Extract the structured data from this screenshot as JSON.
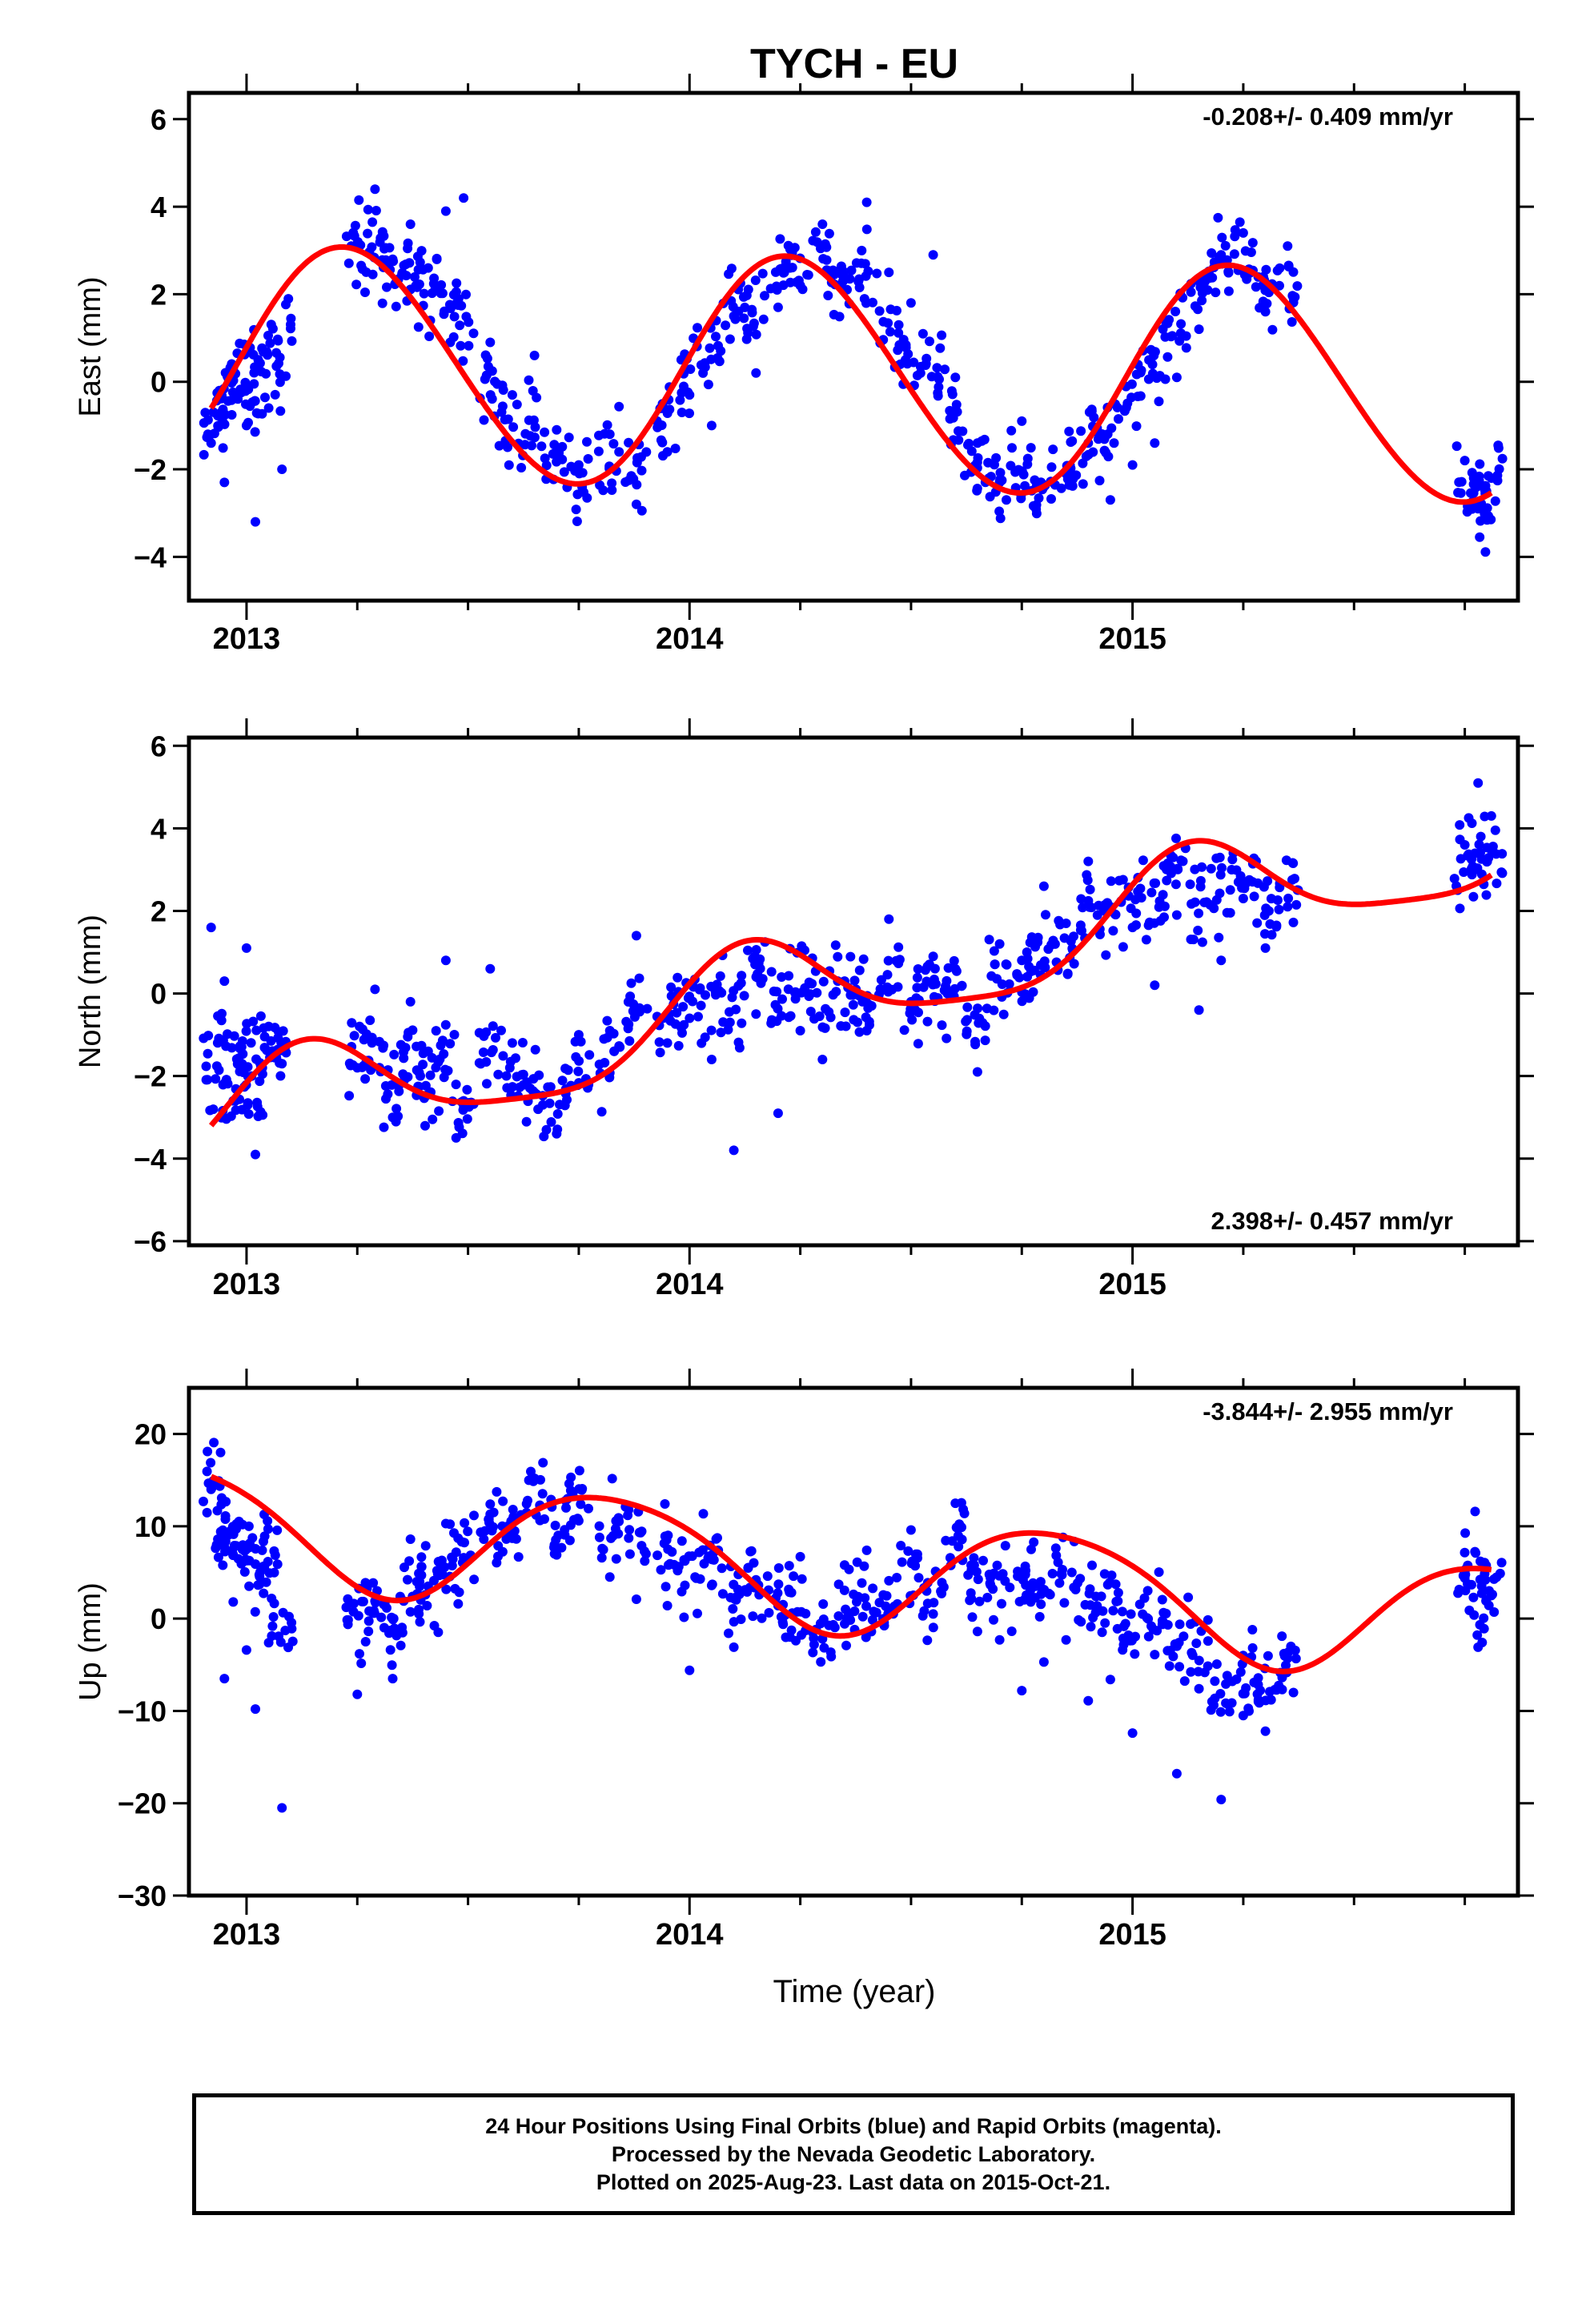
{
  "figure": {
    "title": "TYCH - EU",
    "xlabel": "Time (year)",
    "caption": [
      "24 Hour Positions Using Final Orbits (blue) and Rapid Orbits (magenta).",
      "Processed by the Nevada Geodetic Laboratory.",
      "Plotted on 2025-Aug-23. Last data on 2015-Oct-21."
    ],
    "colors": {
      "data": "#0000ff",
      "model": "#ff0000",
      "frame": "#000000"
    }
  },
  "chart_data": [
    {
      "type": "scatter",
      "ylabel": "East (mm)",
      "rate_label": "-0.208+/- 0.409 mm/yr",
      "rate_placement": "top-right",
      "xlim": [
        2012.87,
        2015.87
      ],
      "ylim": [
        -5,
        6.6
      ],
      "x_ticks": [
        2013,
        2014,
        2015
      ],
      "x_tick_labels": [
        "2013",
        "2014",
        "2015"
      ],
      "y_ticks": [
        -4,
        -2,
        0,
        2,
        4,
        6
      ],
      "y_tick_labels": [
        "−4",
        "−2",
        "0",
        "2",
        "4",
        "6"
      ],
      "model": {
        "name": "",
        "offset": 0.2,
        "rate": -0.208,
        "amp1": 2.64,
        "phase1": 0.125,
        "amp2": 0.12,
        "phase2": 0.05,
        "x_range": [
          2012.92,
          2015.81
        ]
      },
      "series": [
        {
          "name": "",
          "x": [
            2012.92,
            2012.95,
            2012.97,
            2013.0,
            2013.02,
            2013.05,
            2013.08,
            2013.25,
            2013.29,
            2013.33,
            2013.37,
            2013.41,
            2013.45,
            2013.49,
            2013.55,
            2013.6,
            2013.65,
            2013.7,
            2013.75,
            2013.82,
            2013.88,
            2013.95,
            2014.0,
            2014.05,
            2014.1,
            2014.15,
            2014.2,
            2014.25,
            2014.3,
            2014.35,
            2014.4,
            2014.45,
            2014.5,
            2014.55,
            2014.6,
            2014.65,
            2014.7,
            2014.75,
            2014.8,
            2014.85,
            2014.9,
            2014.95,
            2015.0,
            2015.05,
            2015.1,
            2015.15,
            2015.2,
            2015.25,
            2015.3,
            2015.35,
            2015.75,
            2015.78,
            2015.81
          ],
          "y": [
            -1.4,
            -2.3,
            0.3,
            -1.0,
            -3.2,
            -0.6,
            -2.0,
            3.1,
            4.4,
            2.8,
            3.6,
            2.6,
            3.9,
            4.2,
            0.9,
            -0.3,
            0.6,
            -1.1,
            -1.9,
            -1.2,
            -2.8,
            -1.6,
            -0.3,
            -1.0,
            1.5,
            0.2,
            1.7,
            2.2,
            3.6,
            2.4,
            4.1,
            2.5,
            1.8,
            2.9,
            0.1,
            -1.4,
            -2.3,
            -0.9,
            -2.4,
            -2.1,
            -1.4,
            -2.7,
            -1.9,
            -1.4,
            0.1,
            1.2,
            2.9,
            3.4,
            1.6,
            3.1,
            -1.8,
            -2.9,
            -2.2
          ]
        }
      ]
    },
    {
      "type": "scatter",
      "ylabel": "North (mm)",
      "rate_label": "2.398+/- 0.457 mm/yr",
      "rate_placement": "bottom-right",
      "xlim": [
        2012.87,
        2015.87
      ],
      "ylim": [
        -6.1,
        6.2
      ],
      "x_ticks": [
        2013,
        2014,
        2015
      ],
      "x_tick_labels": [
        "2013",
        "2014",
        "2015"
      ],
      "y_ticks": [
        -6,
        -4,
        -2,
        0,
        2,
        4,
        6
      ],
      "y_tick_labels": [
        "−6",
        "−4",
        "−2",
        "0",
        "2",
        "4",
        "6"
      ],
      "model": {
        "name": "",
        "offset": -0.15,
        "rate": 2.398,
        "amp1": 1.3,
        "phase1": 0.7,
        "amp2": 0.3,
        "phase2": 0.1,
        "x_range": [
          2012.92,
          2015.81
        ]
      },
      "series": [
        {
          "name": "",
          "x": [
            2012.92,
            2012.95,
            2012.97,
            2013.0,
            2013.02,
            2013.05,
            2013.08,
            2013.25,
            2013.29,
            2013.33,
            2013.37,
            2013.41,
            2013.45,
            2013.49,
            2013.55,
            2013.6,
            2013.65,
            2013.7,
            2013.75,
            2013.82,
            2013.88,
            2013.95,
            2014.0,
            2014.05,
            2014.1,
            2014.15,
            2014.2,
            2014.25,
            2014.3,
            2014.35,
            2014.4,
            2014.45,
            2014.5,
            2014.55,
            2014.6,
            2014.65,
            2014.7,
            2014.75,
            2014.8,
            2014.85,
            2014.9,
            2014.95,
            2015.0,
            2015.05,
            2015.1,
            2015.15,
            2015.2,
            2015.25,
            2015.3,
            2015.35,
            2015.75,
            2015.78,
            2015.81
          ],
          "y": [
            1.6,
            0.3,
            -2.6,
            1.1,
            -3.9,
            -0.8,
            -1.7,
            -1.8,
            0.1,
            -3.0,
            -0.2,
            -1.4,
            0.8,
            -2.6,
            0.6,
            -1.2,
            -2.4,
            -3.4,
            -1.0,
            -0.9,
            1.4,
            -1.2,
            -0.6,
            -1.6,
            -3.8,
            -0.5,
            -2.9,
            -0.9,
            -1.6,
            0.3,
            -0.9,
            1.8,
            -0.2,
            0.9,
            0.6,
            -1.9,
            1.2,
            0.8,
            2.6,
            1.7,
            3.2,
            2.1,
            1.6,
            0.2,
            1.9,
            -0.4,
            0.8,
            2.3,
            1.1,
            2.1,
            3.6,
            5.1,
            4.3
          ]
        }
      ]
    },
    {
      "type": "scatter",
      "ylabel": "Up (mm)",
      "rate_label": "-3.844+/- 2.955 mm/yr",
      "rate_placement": "top-right",
      "xlim": [
        2012.87,
        2015.87
      ],
      "ylim": [
        -30,
        25
      ],
      "x_ticks": [
        2013,
        2014,
        2015
      ],
      "x_tick_labels": [
        "2013",
        "2014",
        "2015"
      ],
      "y_ticks": [
        -30,
        -20,
        -10,
        0,
        10,
        20
      ],
      "y_tick_labels": [
        "−30",
        "−20",
        "−10",
        "0",
        "10",
        "20"
      ],
      "model": {
        "name": "",
        "offset": 5.8,
        "rate": -3.844,
        "amp1": 6.4,
        "phase1": 2.7,
        "amp2": 0.8,
        "phase2": 0.3,
        "x_range": [
          2012.92,
          2015.81
        ]
      },
      "series": [
        {
          "name": "",
          "x": [
            2012.92,
            2012.95,
            2012.97,
            2013.0,
            2013.02,
            2013.05,
            2013.08,
            2013.25,
            2013.29,
            2013.33,
            2013.37,
            2013.41,
            2013.45,
            2013.49,
            2013.55,
            2013.6,
            2013.65,
            2013.7,
            2013.75,
            2013.82,
            2013.88,
            2013.95,
            2014.0,
            2014.05,
            2014.1,
            2014.15,
            2014.2,
            2014.25,
            2014.3,
            2014.35,
            2014.4,
            2014.45,
            2014.5,
            2014.55,
            2014.6,
            2014.65,
            2014.7,
            2014.75,
            2014.8,
            2014.85,
            2014.9,
            2014.95,
            2015.0,
            2015.05,
            2015.1,
            2015.15,
            2015.2,
            2015.25,
            2015.3,
            2015.35,
            2015.75,
            2015.78,
            2015.81
          ],
          "y": [
            14.0,
            -6.5,
            1.8,
            -3.4,
            -9.8,
            -2.6,
            -20.5,
            -8.2,
            1.9,
            -6.5,
            8.6,
            3.5,
            10.3,
            6.6,
            12.4,
            8.7,
            15.2,
            6.9,
            10.6,
            4.5,
            2.1,
            1.4,
            -5.6,
            3.6,
            -3.1,
            4.2,
            1.4,
            6.7,
            -2.2,
            5.8,
            7.4,
            4.1,
            9.6,
            0.5,
            12.5,
            -1.4,
            -2.3,
            -7.8,
            -4.7,
            -2.3,
            -8.9,
            -6.6,
            -12.4,
            -3.9,
            -16.8,
            -7.6,
            -19.6,
            -10.5,
            -12.2,
            -4.3,
            4.4,
            -3.1,
            2.5
          ]
        }
      ]
    }
  ]
}
